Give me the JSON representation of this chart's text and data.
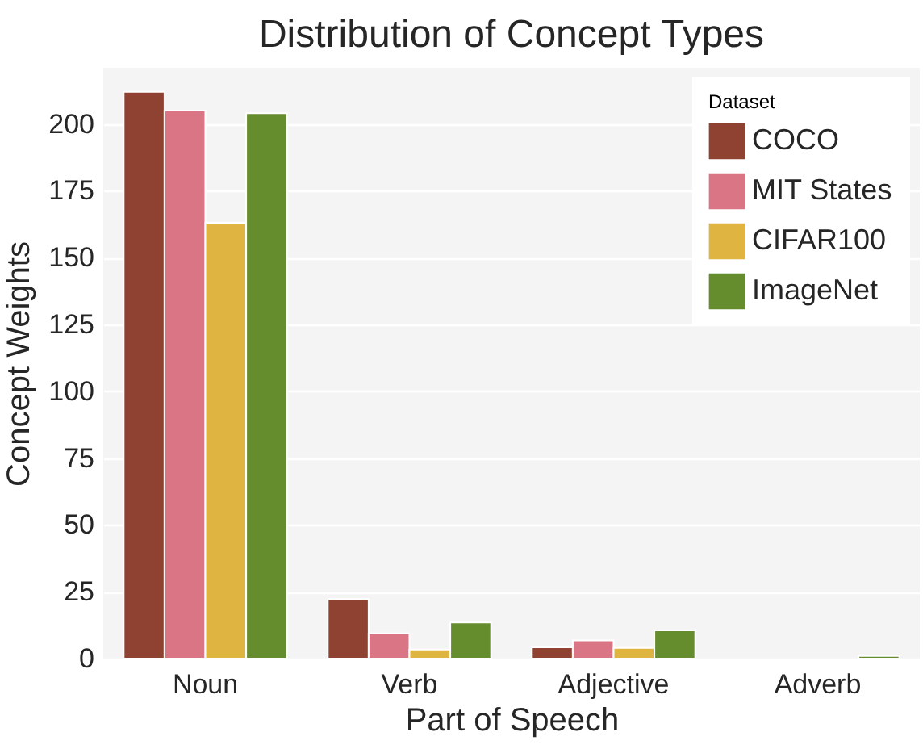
{
  "chart_data": {
    "type": "bar",
    "title": "Distribution of Concept Types",
    "xlabel": "Part of Speech",
    "ylabel": "Concept Weights",
    "legend_title": "Dataset",
    "categories": [
      "Noun",
      "Verb",
      "Adjective",
      "Adverb"
    ],
    "series": [
      {
        "name": "COCO",
        "color": "#8f4232",
        "values": [
          212,
          22.3,
          4.2,
          null
        ]
      },
      {
        "name": "MIT States",
        "color": "#d97585",
        "values": [
          205,
          9.4,
          6.8,
          null
        ]
      },
      {
        "name": "CIFAR100",
        "color": "#e0b440",
        "values": [
          163,
          3.4,
          4,
          null
        ]
      },
      {
        "name": "ImageNet",
        "color": "#658d2e",
        "values": [
          204,
          13.5,
          10.6,
          1
        ]
      }
    ],
    "ylim": [
      0,
      221
    ],
    "yticks": [
      0,
      25,
      50,
      75,
      100,
      125,
      150,
      175,
      200
    ],
    "grid": "y",
    "legend": "top right"
  }
}
